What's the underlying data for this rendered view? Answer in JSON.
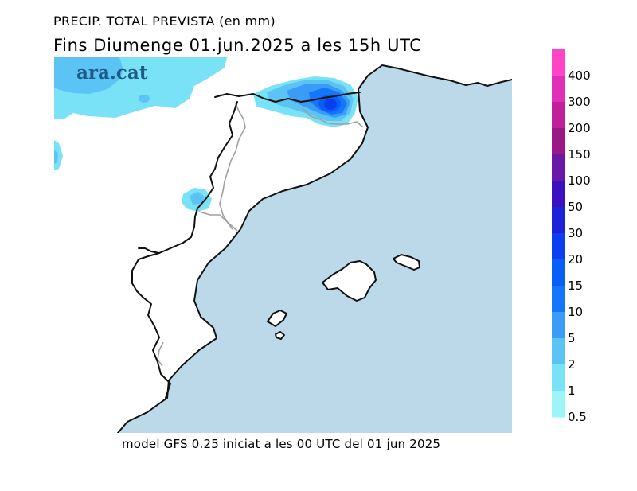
{
  "header": {
    "title": "PRECIP. TOTAL PREVISTA (en mm)",
    "subtitle": "Fins Diumenge 01.jun.2025 a les 15h UTC"
  },
  "map": {
    "logo": "ara.cat",
    "sea_color": "#bcd9ea",
    "land_color": "#ffffff",
    "coast_color": "#111111",
    "border_color": "#a0a0a0"
  },
  "legend": {
    "levels": [
      {
        "label": "400",
        "color": "#ff44c8"
      },
      {
        "label": "300",
        "color": "#e030b8"
      },
      {
        "label": "200",
        "color": "#c0209c"
      },
      {
        "label": "150",
        "color": "#9a1888"
      },
      {
        "label": "100",
        "color": "#6a18a8"
      },
      {
        "label": "50",
        "color": "#3a10c0"
      },
      {
        "label": "30",
        "color": "#1c22d8"
      },
      {
        "label": "20",
        "color": "#0a3ef0"
      },
      {
        "label": "15",
        "color": "#0a5ef8"
      },
      {
        "label": "10",
        "color": "#1476fb"
      },
      {
        "label": "5",
        "color": "#3a9cf6"
      },
      {
        "label": "2",
        "color": "#5cc4f4"
      },
      {
        "label": "1",
        "color": "#7ae2f6"
      },
      {
        "label": "0.5",
        "color": "#9cf6f8"
      }
    ]
  },
  "footer": {
    "caption": "model GFS 0.25 iniciat a les 00 UTC del 01 jun 2025"
  }
}
